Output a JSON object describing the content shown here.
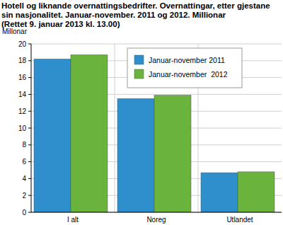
{
  "chart_data": {
    "type": "bar",
    "title": "Hotell og liknande overnattingsbedrifter. Overnattingar, etter gjestane sin nasjonalitet. Januar-november. 2011 og 2012. Millionar",
    "subtitle": "(Rettet 9. januar 2013 kl. 13.00)",
    "y_label": "Millonar",
    "categories": [
      "I alt",
      "Noreg",
      "Utlandet"
    ],
    "series": [
      {
        "name": "Januar-november 2011",
        "color": "#2e8fcc",
        "values": [
          18.2,
          13.5,
          4.7
        ]
      },
      {
        "name": "Januar-november  2012",
        "color": "#6ab43e",
        "values": [
          18.7,
          13.9,
          4.8
        ]
      }
    ],
    "ylim": [
      0,
      20
    ],
    "yticks": [
      0,
      2,
      4,
      6,
      8,
      10,
      12,
      14,
      16,
      18,
      20
    ],
    "grid": true,
    "legend": "top"
  }
}
